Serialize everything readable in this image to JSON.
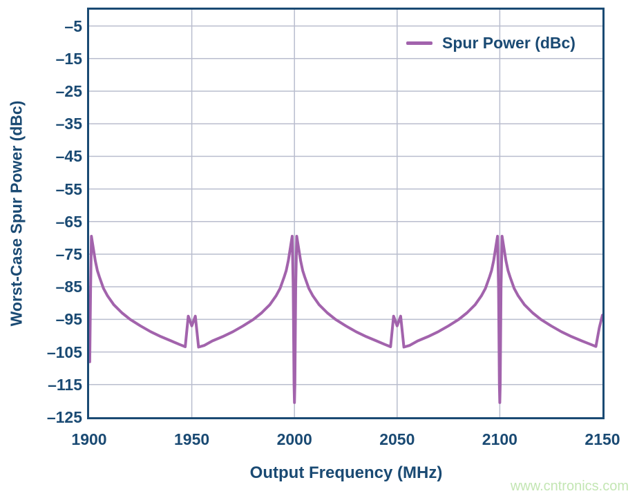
{
  "watermark": "www.cntronics.com",
  "colors": {
    "axis_navy": "#1a4a73",
    "grid_gray": "#b9bdce",
    "line_purple": "#a263ac",
    "watermark_green": "#c3e6b3",
    "background": "#ffffff"
  },
  "chart_data": {
    "type": "line",
    "title": "",
    "xlabel": "Output Frequency (MHz)",
    "ylabel": "Worst-Case Spur Power (dBc)",
    "xlim": [
      1900,
      2150
    ],
    "ylim": [
      -125,
      0
    ],
    "grid": true,
    "legend_position": "top-right inside plot",
    "x_ticks": [
      {
        "v": 1900,
        "label": "1900"
      },
      {
        "v": 1950,
        "label": "1950"
      },
      {
        "v": 2000,
        "label": "2000"
      },
      {
        "v": 2050,
        "label": "2050"
      },
      {
        "v": 2100,
        "label": "2100"
      },
      {
        "v": 2150,
        "label": "2150"
      }
    ],
    "y_ticks": [
      {
        "v": -5,
        "label": "–5"
      },
      {
        "v": -15,
        "label": "–15"
      },
      {
        "v": -25,
        "label": "–25"
      },
      {
        "v": -35,
        "label": "–35"
      },
      {
        "v": -45,
        "label": "–45"
      },
      {
        "v": -55,
        "label": "–55"
      },
      {
        "v": -65,
        "label": "–65"
      },
      {
        "v": -75,
        "label": "–75"
      },
      {
        "v": -85,
        "label": "–85"
      },
      {
        "v": -95,
        "label": "–95"
      },
      {
        "v": -105,
        "label": "–105"
      },
      {
        "v": -115,
        "label": "–115"
      },
      {
        "v": -125,
        "label": "–125"
      }
    ],
    "x_gridlines": [
      1950,
      2000,
      2050,
      2100
    ],
    "y_gridlines": [
      -5,
      -15,
      -25,
      -35,
      -45,
      -55,
      -65,
      -75,
      -85,
      -95,
      -105,
      -115
    ],
    "series": [
      {
        "name": "Spur Power (dBc)",
        "color": "#a263ac",
        "points": [
          [
            1900.3,
            -108
          ],
          [
            1900.7,
            -86
          ],
          [
            1901.1,
            -69.5
          ],
          [
            1902,
            -73
          ],
          [
            1903,
            -77
          ],
          [
            1904,
            -80
          ],
          [
            1905,
            -82
          ],
          [
            1907,
            -85.5
          ],
          [
            1909,
            -87.8
          ],
          [
            1912,
            -90.5
          ],
          [
            1916,
            -93
          ],
          [
            1920,
            -95
          ],
          [
            1925,
            -97
          ],
          [
            1930,
            -98.8
          ],
          [
            1935,
            -100.3
          ],
          [
            1940,
            -101.6
          ],
          [
            1944,
            -102.7
          ],
          [
            1946.8,
            -103.4
          ],
          [
            1948.3,
            -94
          ],
          [
            1950,
            -97
          ],
          [
            1951.7,
            -94
          ],
          [
            1953.3,
            -103.5
          ],
          [
            1956,
            -103
          ],
          [
            1960,
            -101.6
          ],
          [
            1965,
            -100.3
          ],
          [
            1970,
            -98.8
          ],
          [
            1975,
            -97
          ],
          [
            1980,
            -95
          ],
          [
            1984,
            -93
          ],
          [
            1988,
            -90.5
          ],
          [
            1991,
            -87.8
          ],
          [
            1993,
            -85.5
          ],
          [
            1995,
            -82
          ],
          [
            1996,
            -80
          ],
          [
            1997,
            -77
          ],
          [
            1998,
            -73
          ],
          [
            1998.9,
            -69.5
          ],
          [
            1999.4,
            -85
          ],
          [
            1999.8,
            -115
          ],
          [
            2000,
            -120.5
          ],
          [
            2000.2,
            -115
          ],
          [
            2000.6,
            -85
          ],
          [
            2001.1,
            -69.5
          ],
          [
            2002,
            -73
          ],
          [
            2003,
            -77
          ],
          [
            2004,
            -80
          ],
          [
            2005,
            -82
          ],
          [
            2007,
            -85.5
          ],
          [
            2009,
            -87.8
          ],
          [
            2012,
            -90.5
          ],
          [
            2016,
            -93
          ],
          [
            2020,
            -95
          ],
          [
            2025,
            -97
          ],
          [
            2030,
            -98.8
          ],
          [
            2035,
            -100.3
          ],
          [
            2040,
            -101.6
          ],
          [
            2044,
            -102.7
          ],
          [
            2046.8,
            -103.4
          ],
          [
            2048.3,
            -94
          ],
          [
            2050,
            -97
          ],
          [
            2051.7,
            -94
          ],
          [
            2053.3,
            -103.5
          ],
          [
            2056,
            -103
          ],
          [
            2060,
            -101.6
          ],
          [
            2065,
            -100.3
          ],
          [
            2070,
            -98.8
          ],
          [
            2075,
            -97
          ],
          [
            2080,
            -95
          ],
          [
            2084,
            -93
          ],
          [
            2088,
            -90.5
          ],
          [
            2091,
            -87.8
          ],
          [
            2093,
            -85.5
          ],
          [
            2095,
            -82
          ],
          [
            2096,
            -80
          ],
          [
            2097,
            -77
          ],
          [
            2098,
            -73
          ],
          [
            2098.9,
            -69.5
          ],
          [
            2099.4,
            -85
          ],
          [
            2099.8,
            -115
          ],
          [
            2100,
            -120.5
          ],
          [
            2100.2,
            -115
          ],
          [
            2100.6,
            -85
          ],
          [
            2101.1,
            -69.5
          ],
          [
            2102,
            -73
          ],
          [
            2103,
            -77
          ],
          [
            2104,
            -80
          ],
          [
            2105,
            -82
          ],
          [
            2107,
            -85.5
          ],
          [
            2109,
            -87.8
          ],
          [
            2112,
            -90.5
          ],
          [
            2116,
            -93
          ],
          [
            2120,
            -95
          ],
          [
            2125,
            -97
          ],
          [
            2130,
            -98.8
          ],
          [
            2135,
            -100.3
          ],
          [
            2140,
            -101.6
          ],
          [
            2144,
            -102.6
          ],
          [
            2146.8,
            -103.3
          ],
          [
            2148.5,
            -97.5
          ],
          [
            2150,
            -93.7
          ]
        ]
      }
    ]
  }
}
